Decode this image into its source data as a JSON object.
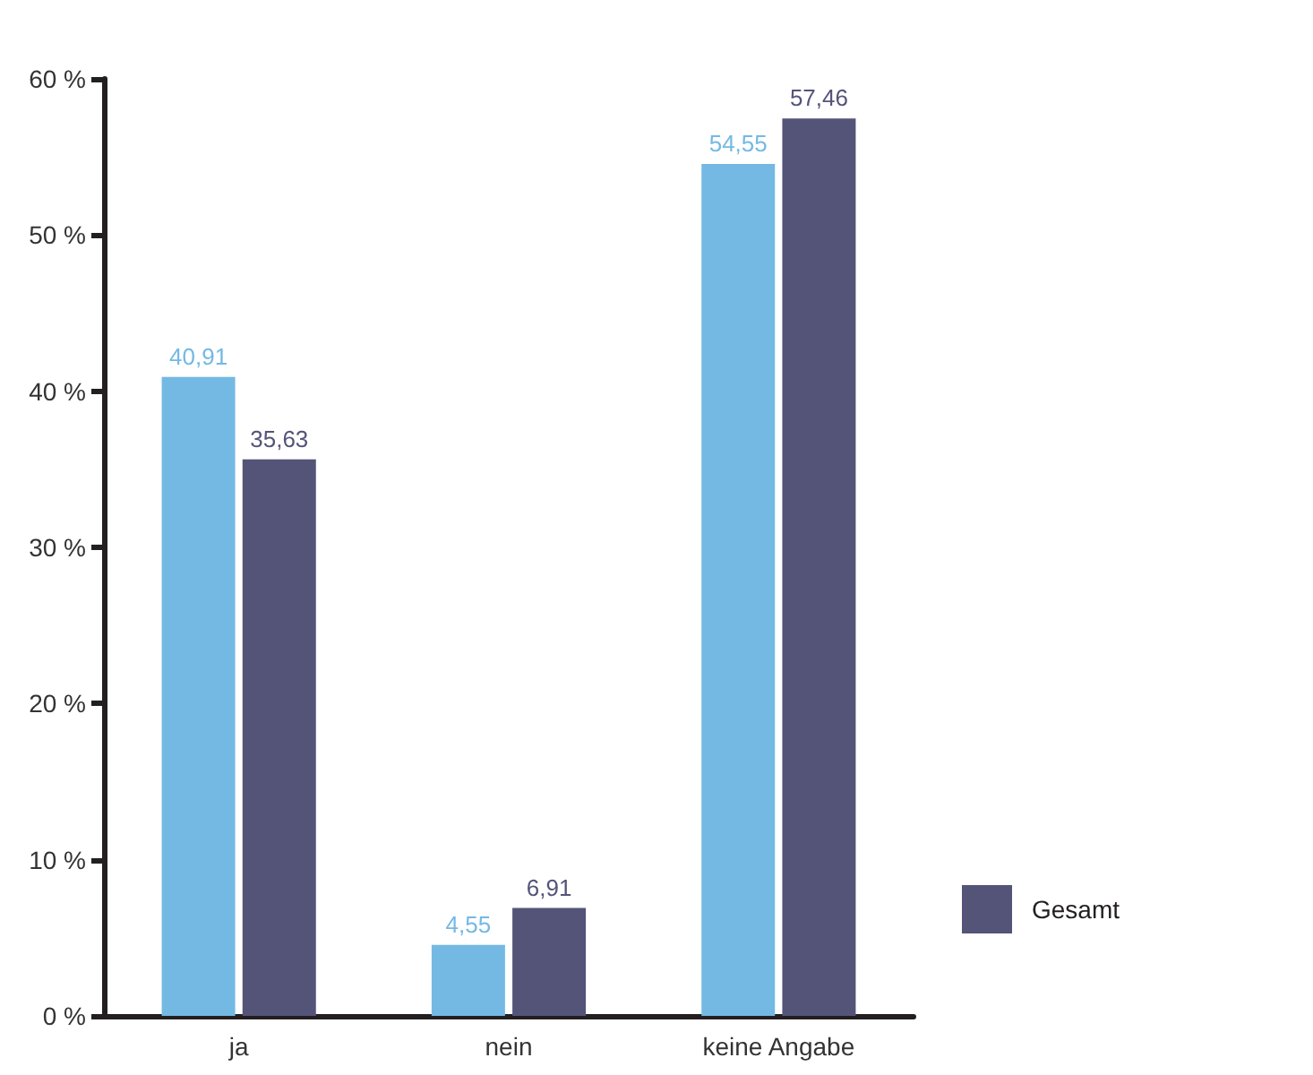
{
  "chart_data": {
    "type": "bar",
    "categories": [
      "ja",
      "nein",
      "keine Angabe"
    ],
    "series": [
      {
        "color": "#74b9e4",
        "values": [
          40.91,
          4.55,
          54.55
        ],
        "value_labels": [
          "40,91",
          "4,55",
          "54,55"
        ]
      },
      {
        "name": "Gesamt",
        "color": "#545479",
        "values": [
          35.63,
          6.91,
          57.46
        ],
        "value_labels": [
          "35,63",
          "6,91",
          "57,46"
        ]
      }
    ],
    "ylim": [
      0,
      60
    ],
    "yticks": [
      {
        "value": 0,
        "label": "0 %"
      },
      {
        "value": 10,
        "label": "10 %"
      },
      {
        "value": 20,
        "label": "20 %"
      },
      {
        "value": 30,
        "label": "30 %"
      },
      {
        "value": 40,
        "label": "40 %"
      },
      {
        "value": 50,
        "label": "50 %"
      },
      {
        "value": 60,
        "label": "60 %"
      }
    ],
    "legend": "bottom right"
  }
}
